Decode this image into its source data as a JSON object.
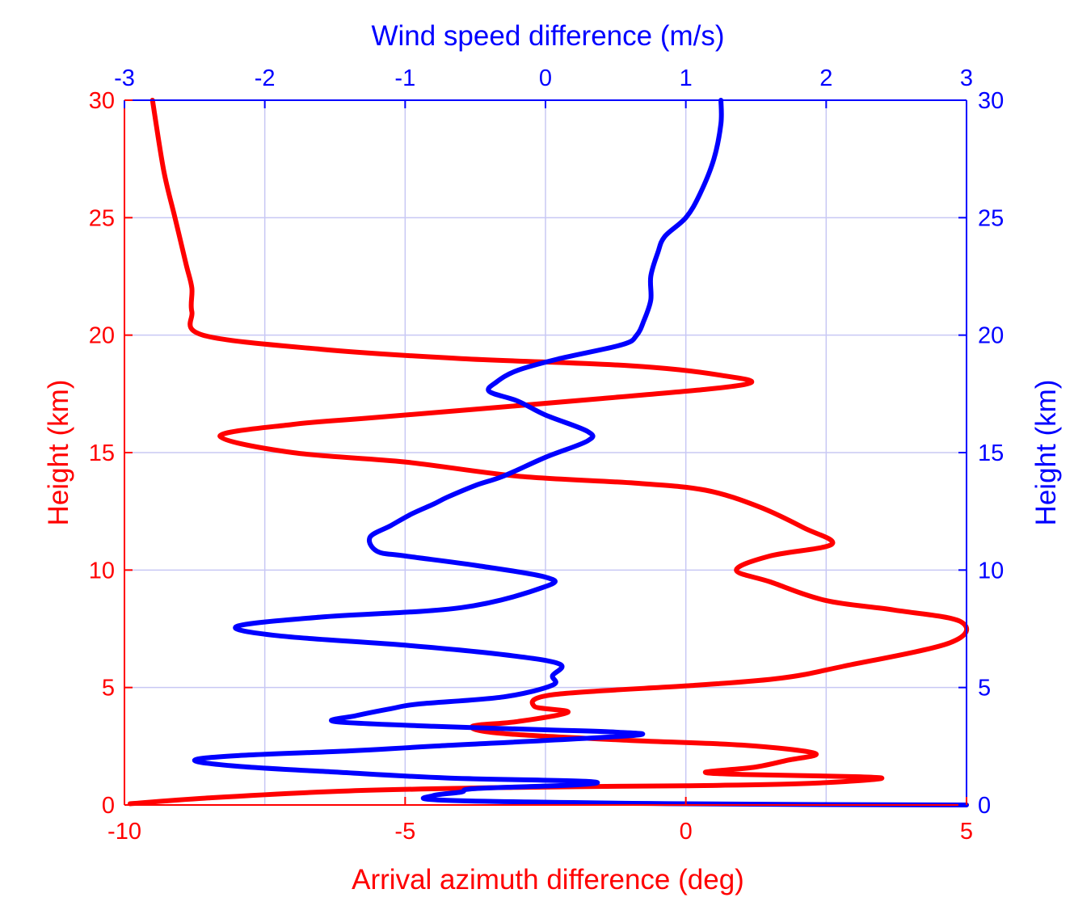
{
  "chart_data": {
    "type": "line",
    "title": "",
    "bottom_axis": {
      "label": "Arrival azimuth difference (deg)",
      "range": [
        -10,
        5
      ],
      "ticks": [
        "-10",
        "-5",
        "0",
        "5"
      ],
      "color": "#ff0000"
    },
    "top_axis": {
      "label": "Wind speed difference (m/s)",
      "range": [
        -3,
        3
      ],
      "ticks": [
        "-3",
        "-2",
        "-1",
        "0",
        "1",
        "2",
        "3"
      ],
      "color": "#0000ff"
    },
    "left_axis": {
      "label": "Height (km)",
      "range": [
        0,
        30
      ],
      "ticks": [
        "0",
        "5",
        "10",
        "15",
        "20",
        "25",
        "30"
      ],
      "color": "#ff0000"
    },
    "right_axis": {
      "label": "Height (km)",
      "range": [
        0,
        30
      ],
      "ticks": [
        "0",
        "5",
        "10",
        "15",
        "20",
        "25",
        "30"
      ],
      "color": "#0000ff"
    },
    "grid": true,
    "series": [
      {
        "name": "Arrival azimuth difference",
        "axis": "bottom",
        "color": "#ff0000",
        "points": [
          [
            -9.9,
            0.05
          ],
          [
            -8.5,
            0.3
          ],
          [
            -6,
            0.6
          ],
          [
            -3,
            0.75
          ],
          [
            0,
            0.82
          ],
          [
            2,
            0.9
          ],
          [
            3.4,
            1.1
          ],
          [
            3.1,
            1.2
          ],
          [
            1,
            1.3
          ],
          [
            0.35,
            1.4
          ],
          [
            1.2,
            1.6
          ],
          [
            1.8,
            1.9
          ],
          [
            2.3,
            2.2
          ],
          [
            1,
            2.55
          ],
          [
            -1,
            2.75
          ],
          [
            -3.3,
            3.05
          ],
          [
            -3.8,
            3.35
          ],
          [
            -3,
            3.55
          ],
          [
            -2.1,
            3.95
          ],
          [
            -2.7,
            4.2
          ],
          [
            -2.35,
            4.7
          ],
          [
            0.2,
            5.1
          ],
          [
            1.7,
            5.4
          ],
          [
            2.8,
            5.9
          ],
          [
            4.7,
            6.9
          ],
          [
            4.9,
            7.8
          ],
          [
            3.7,
            8.3
          ],
          [
            2.5,
            8.7
          ],
          [
            1.5,
            9.5
          ],
          [
            0.9,
            10
          ],
          [
            1.5,
            10.6
          ],
          [
            2.6,
            11.1
          ],
          [
            2.1,
            11.8
          ],
          [
            1.3,
            12.7
          ],
          [
            0.35,
            13.4
          ],
          [
            -0.9,
            13.7
          ],
          [
            -3,
            14.0
          ],
          [
            -5,
            14.6
          ],
          [
            -7,
            15.0
          ],
          [
            -8.3,
            15.7
          ],
          [
            -7,
            16.2
          ],
          [
            -5.5,
            16.5
          ],
          [
            -1.5,
            17.3
          ],
          [
            1.05,
            17.9
          ],
          [
            0.6,
            18.3
          ],
          [
            -1,
            18.7
          ],
          [
            -4,
            19.0
          ],
          [
            -6.5,
            19.4
          ],
          [
            -8.6,
            20.0
          ],
          [
            -8.8,
            21
          ],
          [
            -8.8,
            22
          ],
          [
            -8.9,
            23
          ],
          [
            -9.1,
            25
          ],
          [
            -9.3,
            27
          ],
          [
            -9.5,
            30
          ]
        ]
      },
      {
        "name": "Wind speed difference",
        "axis": "top",
        "color": "#0000ff",
        "points": [
          [
            3.0,
            0.0
          ],
          [
            1.0,
            0.05
          ],
          [
            -0.7,
            0.2
          ],
          [
            -0.8,
            0.4
          ],
          [
            -0.6,
            0.55
          ],
          [
            -0.5,
            0.7
          ],
          [
            0.2,
            0.85
          ],
          [
            0.3,
            1.0
          ],
          [
            -0.7,
            1.15
          ],
          [
            -1.5,
            1.4
          ],
          [
            -2.2,
            1.65
          ],
          [
            -2.5,
            1.9
          ],
          [
            -2.2,
            2.1
          ],
          [
            -1.4,
            2.3
          ],
          [
            -0.8,
            2.5
          ],
          [
            0.6,
            2.95
          ],
          [
            0.5,
            3.1
          ],
          [
            0.0,
            3.2
          ],
          [
            -0.8,
            3.35
          ],
          [
            -1.5,
            3.55
          ],
          [
            -1.35,
            3.8
          ],
          [
            -1.1,
            4.1
          ],
          [
            -0.9,
            4.3
          ],
          [
            -0.3,
            4.6
          ],
          [
            0.05,
            5.1
          ],
          [
            0.05,
            5.5
          ],
          [
            0.1,
            6.0
          ],
          [
            -0.3,
            6.4
          ],
          [
            -1.0,
            6.8
          ],
          [
            -1.9,
            7.2
          ],
          [
            -2.2,
            7.6
          ],
          [
            -1.6,
            8.0
          ],
          [
            -0.6,
            8.4
          ],
          [
            0.0,
            9.3
          ],
          [
            0.0,
            9.7
          ],
          [
            -0.5,
            10.2
          ],
          [
            -1.0,
            10.6
          ],
          [
            -1.2,
            10.8
          ],
          [
            -1.25,
            11.4
          ],
          [
            -1.1,
            11.9
          ],
          [
            -0.95,
            12.4
          ],
          [
            -0.8,
            12.8
          ],
          [
            -0.7,
            13.1
          ],
          [
            -0.5,
            13.6
          ],
          [
            -0.3,
            14.0
          ],
          [
            0.0,
            14.8
          ],
          [
            0.3,
            15.5
          ],
          [
            0.3,
            15.9
          ],
          [
            0.0,
            16.6
          ],
          [
            -0.2,
            17.2
          ],
          [
            -0.4,
            17.6
          ],
          [
            -0.35,
            18.0
          ],
          [
            -0.2,
            18.5
          ],
          [
            0.1,
            19.0
          ],
          [
            0.55,
            19.6
          ],
          [
            0.65,
            20.0
          ],
          [
            0.7,
            20.6
          ],
          [
            0.75,
            21.5
          ],
          [
            0.75,
            22.5
          ],
          [
            0.8,
            23.5
          ],
          [
            0.85,
            24.2
          ],
          [
            1.0,
            25.0
          ],
          [
            1.1,
            26.0
          ],
          [
            1.2,
            27.5
          ],
          [
            1.25,
            29.0
          ],
          [
            1.25,
            30.0
          ]
        ]
      }
    ]
  }
}
